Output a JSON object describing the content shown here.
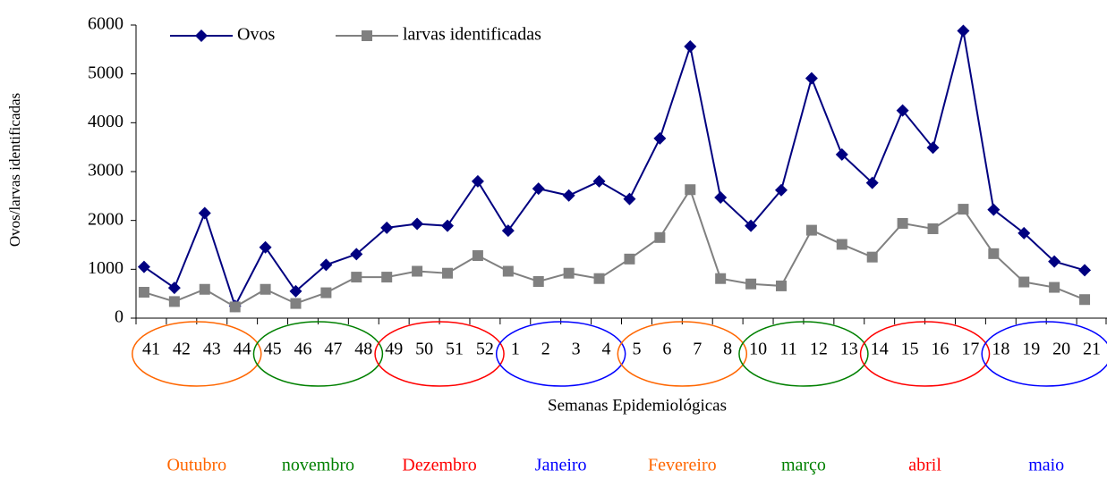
{
  "chart_data": {
    "type": "line",
    "ylabel": "Ovos/larvas identificadas",
    "xlabel": "Semanas Epidemiológicas",
    "categories": [
      "41",
      "42",
      "43",
      "44",
      "45",
      "46",
      "47",
      "48",
      "49",
      "50",
      "51",
      "52",
      "1",
      "2",
      "3",
      "4",
      "5",
      "6",
      "7",
      "8",
      "10",
      "11",
      "12",
      "13",
      "14",
      "15",
      "16",
      "17",
      "18",
      "19",
      "20",
      "21"
    ],
    "series": [
      {
        "name": "Ovos",
        "color": "#000080",
        "marker": "diamond",
        "values": [
          1050,
          620,
          2150,
          250,
          1450,
          550,
          1090,
          1310,
          1850,
          1930,
          1890,
          2800,
          1790,
          2650,
          2510,
          2800,
          2440,
          3680,
          5560,
          2470,
          1890,
          2620,
          4910,
          3350,
          2770,
          4250,
          3490,
          5880,
          2220,
          1740,
          1160,
          980
        ]
      },
      {
        "name": "larvas identificadas",
        "color": "#808080",
        "marker": "square",
        "values": [
          530,
          340,
          590,
          230,
          590,
          300,
          520,
          840,
          840,
          960,
          920,
          1280,
          960,
          750,
          920,
          810,
          1210,
          1650,
          2630,
          810,
          700,
          660,
          1800,
          1510,
          1250,
          1940,
          1830,
          2230,
          1320,
          740,
          630,
          380
        ]
      }
    ],
    "months": [
      {
        "name": "Outubro",
        "color": "#ff6600"
      },
      {
        "name": "novembro",
        "color": "#008000"
      },
      {
        "name": "Dezembro",
        "color": "#ff0000"
      },
      {
        "name": "Janeiro",
        "color": "#0000ff"
      },
      {
        "name": "Fevereiro",
        "color": "#ff6600"
      },
      {
        "name": "março",
        "color": "#008000"
      },
      {
        "name": "abril",
        "color": "#ff0000"
      },
      {
        "name": "maio",
        "color": "#0000ff"
      }
    ],
    "ylim": [
      0,
      6000
    ],
    "yticks": [
      0,
      1000,
      2000,
      3000,
      4000,
      5000,
      6000
    ],
    "legend": "top-left"
  }
}
